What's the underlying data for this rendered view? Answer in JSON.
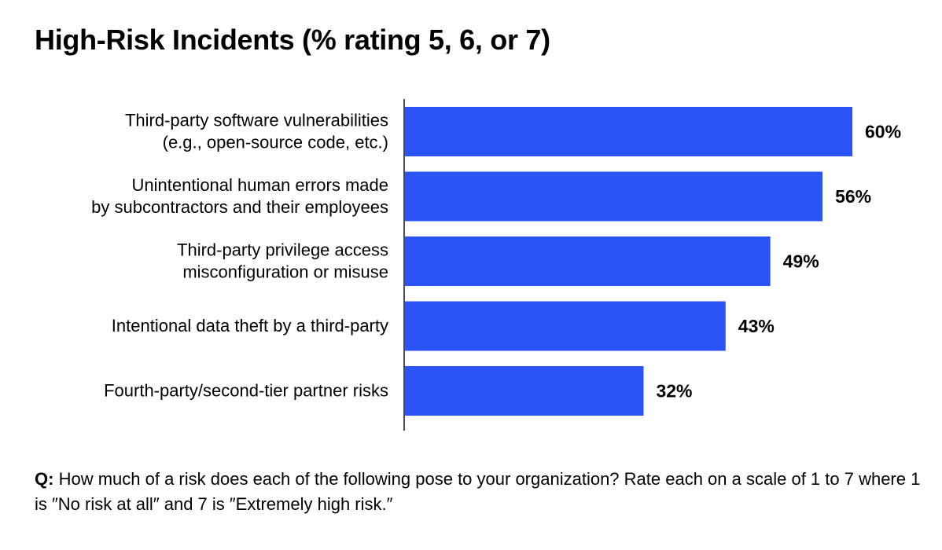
{
  "chart_data": {
    "type": "bar",
    "orientation": "horizontal",
    "title": "High-Risk Incidents (% rating 5, 6, or 7)",
    "categories": [
      [
        "Third-party software vulnerabilities",
        "(e.g., open-source code, etc.)"
      ],
      [
        "Unintentional human errors made",
        "by subcontractors and their employees"
      ],
      [
        "Third-party privilege access",
        "misconfiguration or misuse"
      ],
      [
        "Intentional data theft by a third-party"
      ],
      [
        "Fourth-party/second-tier partner risks"
      ]
    ],
    "values": [
      60,
      56,
      49,
      43,
      32
    ],
    "value_labels": [
      "60%",
      "56%",
      "49%",
      "43%",
      "32%"
    ],
    "bar_color": "#2b54f5",
    "xlim": [
      0,
      60
    ],
    "grid": false
  },
  "footnote": {
    "prefix": "Q:",
    "text": "How much of a risk does each of the following pose to your organization? Rate each on a scale of 1 to 7 where 1 is ″No risk at all″ and 7 is ″Extremely high risk.″"
  }
}
